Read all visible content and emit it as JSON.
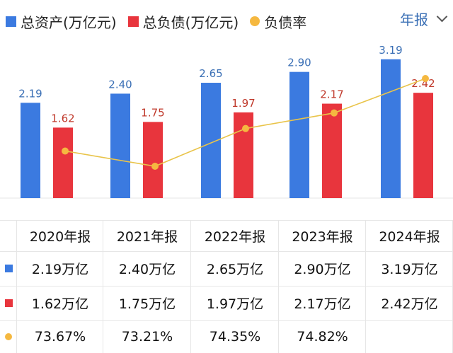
{
  "legend": {
    "assets_label": "总资产(万亿元)",
    "liabilities_label": "总负债(万亿元)",
    "ratio_label": "负债率"
  },
  "period_selector": {
    "label": "年报"
  },
  "colors": {
    "assets": "#3b7ae0",
    "liabilities": "#e8353d",
    "ratio": "#f5b840",
    "ratio_line": "#e9c44a"
  },
  "chart_data": {
    "type": "bar",
    "categories": [
      "2020年报",
      "2021年报",
      "2022年报",
      "2023年报",
      "2024年报"
    ],
    "series": [
      {
        "name": "总资产(万亿元)",
        "values": [
          2.19,
          2.4,
          2.65,
          2.9,
          3.19
        ],
        "labels": [
          "2.19",
          "2.40",
          "2.65",
          "2.90",
          "3.19"
        ]
      },
      {
        "name": "总负债(万亿元)",
        "values": [
          1.62,
          1.75,
          1.97,
          2.17,
          2.42
        ],
        "labels": [
          "1.62",
          "1.75",
          "1.97",
          "2.17",
          "2.42"
        ]
      },
      {
        "name": "负债率",
        "type": "line",
        "values": [
          73.67,
          73.21,
          74.35,
          74.82,
          75.86
        ]
      }
    ],
    "legend_position": "top-left",
    "grid": false
  },
  "table": {
    "headers": [
      "2020年报",
      "2021年报",
      "2022年报",
      "2023年报",
      "2024年报"
    ],
    "rows": [
      {
        "key": "assets",
        "cells": [
          "2.19万亿",
          "2.40万亿",
          "2.65万亿",
          "2.90万亿",
          "3.19万亿"
        ]
      },
      {
        "key": "liabilities",
        "cells": [
          "1.62万亿",
          "1.75万亿",
          "1.97万亿",
          "2.17万亿",
          "2.42万亿"
        ]
      },
      {
        "key": "ratio",
        "cells": [
          "73.67%",
          "73.21%",
          "74.35%",
          "74.82%",
          ""
        ]
      }
    ]
  }
}
